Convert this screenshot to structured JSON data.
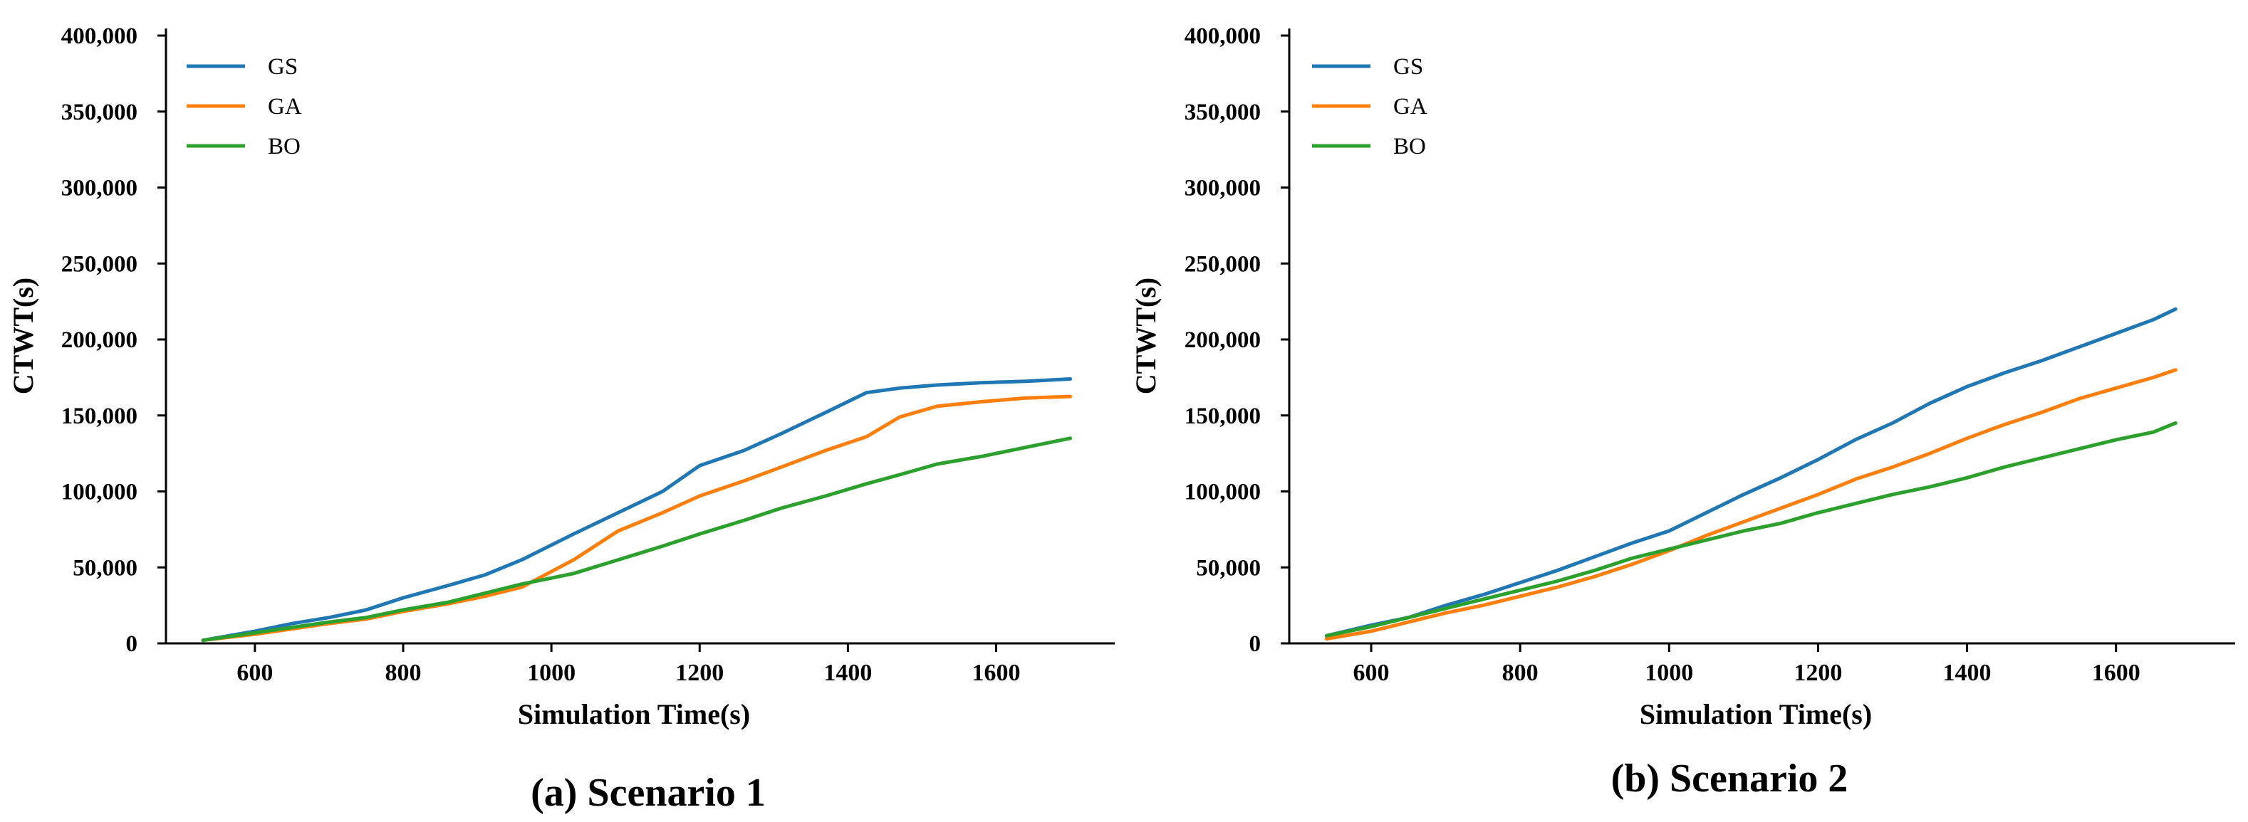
{
  "chart_data": [
    {
      "type": "line",
      "caption": "(a) Scenario 1",
      "xlabel": "Simulation Time(s)",
      "ylabel": "CTWT(s)",
      "xlim": [
        480,
        1760
      ],
      "ylim": [
        0,
        400000
      ],
      "xticks": [
        600,
        800,
        1000,
        1200,
        1400,
        1600
      ],
      "yticks": [
        0,
        50000,
        100000,
        150000,
        200000,
        250000,
        300000,
        350000,
        400000
      ],
      "ytick_labels": [
        "0",
        "50,000",
        "100,000",
        "150,000",
        "200,000",
        "250,000",
        "300,000",
        "350,000",
        "400,000"
      ],
      "xtick_labels": [
        "600",
        "800",
        "1000",
        "1200",
        "1400",
        "1600"
      ],
      "legend_position": "top-left",
      "series": [
        {
          "name": "GS",
          "color": "#1f77b4",
          "x": [
            530,
            600,
            650,
            700,
            750,
            800,
            860,
            910,
            960,
            1030,
            1090,
            1150,
            1200,
            1260,
            1310,
            1370,
            1425,
            1470,
            1520,
            1580,
            1640,
            1700
          ],
          "y": [
            2000,
            8000,
            13000,
            17000,
            22000,
            30000,
            38000,
            45000,
            55000,
            72000,
            86000,
            100000,
            117000,
            127000,
            138000,
            152000,
            165000,
            168000,
            170000,
            171500,
            172500,
            174000
          ]
        },
        {
          "name": "GA",
          "color": "#ff7f0e",
          "x": [
            530,
            600,
            650,
            700,
            750,
            800,
            860,
            910,
            960,
            1030,
            1090,
            1150,
            1200,
            1260,
            1310,
            1370,
            1425,
            1470,
            1520,
            1580,
            1640,
            1700
          ],
          "y": [
            2000,
            6000,
            9500,
            13000,
            16000,
            21000,
            26000,
            31000,
            37000,
            55000,
            74000,
            86000,
            97000,
            107000,
            116000,
            127000,
            136000,
            149000,
            156000,
            159000,
            161500,
            162500
          ]
        },
        {
          "name": "BO",
          "color": "#2ca02c",
          "x": [
            530,
            600,
            650,
            700,
            750,
            800,
            860,
            910,
            960,
            1030,
            1090,
            1150,
            1200,
            1260,
            1310,
            1370,
            1425,
            1470,
            1520,
            1580,
            1640,
            1700
          ],
          "y": [
            2000,
            7000,
            10500,
            14000,
            17000,
            22000,
            27000,
            33000,
            39000,
            46000,
            55000,
            64000,
            72000,
            81000,
            89000,
            97000,
            105000,
            111000,
            118000,
            123000,
            129000,
            135000
          ]
        }
      ]
    },
    {
      "type": "line",
      "caption": "(b) Scenario 2",
      "xlabel": "Simulation Time(s)",
      "ylabel": "CTWT(s)",
      "xlim": [
        490,
        1760
      ],
      "ylim": [
        0,
        400000
      ],
      "xticks": [
        600,
        800,
        1000,
        1200,
        1400,
        1600
      ],
      "yticks": [
        0,
        50000,
        100000,
        150000,
        200000,
        250000,
        300000,
        350000,
        400000
      ],
      "ytick_labels": [
        "0",
        "50,000",
        "100,000",
        "150,000",
        "200,000",
        "250,000",
        "300,000",
        "350,000",
        "400,000"
      ],
      "xtick_labels": [
        "600",
        "800",
        "1000",
        "1200",
        "1400",
        "1600"
      ],
      "legend_position": "top-left",
      "series": [
        {
          "name": "GS",
          "color": "#1f77b4",
          "x": [
            540,
            600,
            650,
            700,
            750,
            800,
            850,
            900,
            950,
            1000,
            1050,
            1100,
            1150,
            1200,
            1250,
            1300,
            1350,
            1400,
            1450,
            1500,
            1550,
            1600,
            1650,
            1680
          ],
          "y": [
            5000,
            12000,
            17000,
            25000,
            32000,
            40000,
            48000,
            57000,
            66000,
            74000,
            86000,
            98000,
            109000,
            121000,
            134000,
            145000,
            158000,
            169000,
            178000,
            186000,
            195000,
            204000,
            213000,
            220000
          ]
        },
        {
          "name": "GA",
          "color": "#ff7f0e",
          "x": [
            540,
            600,
            650,
            700,
            750,
            800,
            850,
            900,
            950,
            1000,
            1050,
            1100,
            1150,
            1200,
            1250,
            1300,
            1350,
            1400,
            1450,
            1500,
            1550,
            1600,
            1650,
            1680
          ],
          "y": [
            3000,
            8000,
            14000,
            20000,
            25000,
            31000,
            37000,
            44000,
            52000,
            61000,
            71000,
            80000,
            89000,
            98000,
            108000,
            116000,
            125000,
            135000,
            144000,
            152000,
            161000,
            168000,
            175000,
            180000
          ]
        },
        {
          "name": "BO",
          "color": "#2ca02c",
          "x": [
            540,
            600,
            650,
            700,
            750,
            800,
            850,
            900,
            950,
            1000,
            1050,
            1100,
            1150,
            1200,
            1250,
            1300,
            1350,
            1400,
            1450,
            1500,
            1550,
            1600,
            1650,
            1680
          ],
          "y": [
            5000,
            11000,
            17000,
            23000,
            29000,
            35000,
            41000,
            48000,
            56000,
            62000,
            68000,
            74000,
            79000,
            86000,
            92000,
            98000,
            103000,
            109000,
            116000,
            122000,
            128000,
            134000,
            139000,
            145000
          ]
        }
      ]
    }
  ]
}
